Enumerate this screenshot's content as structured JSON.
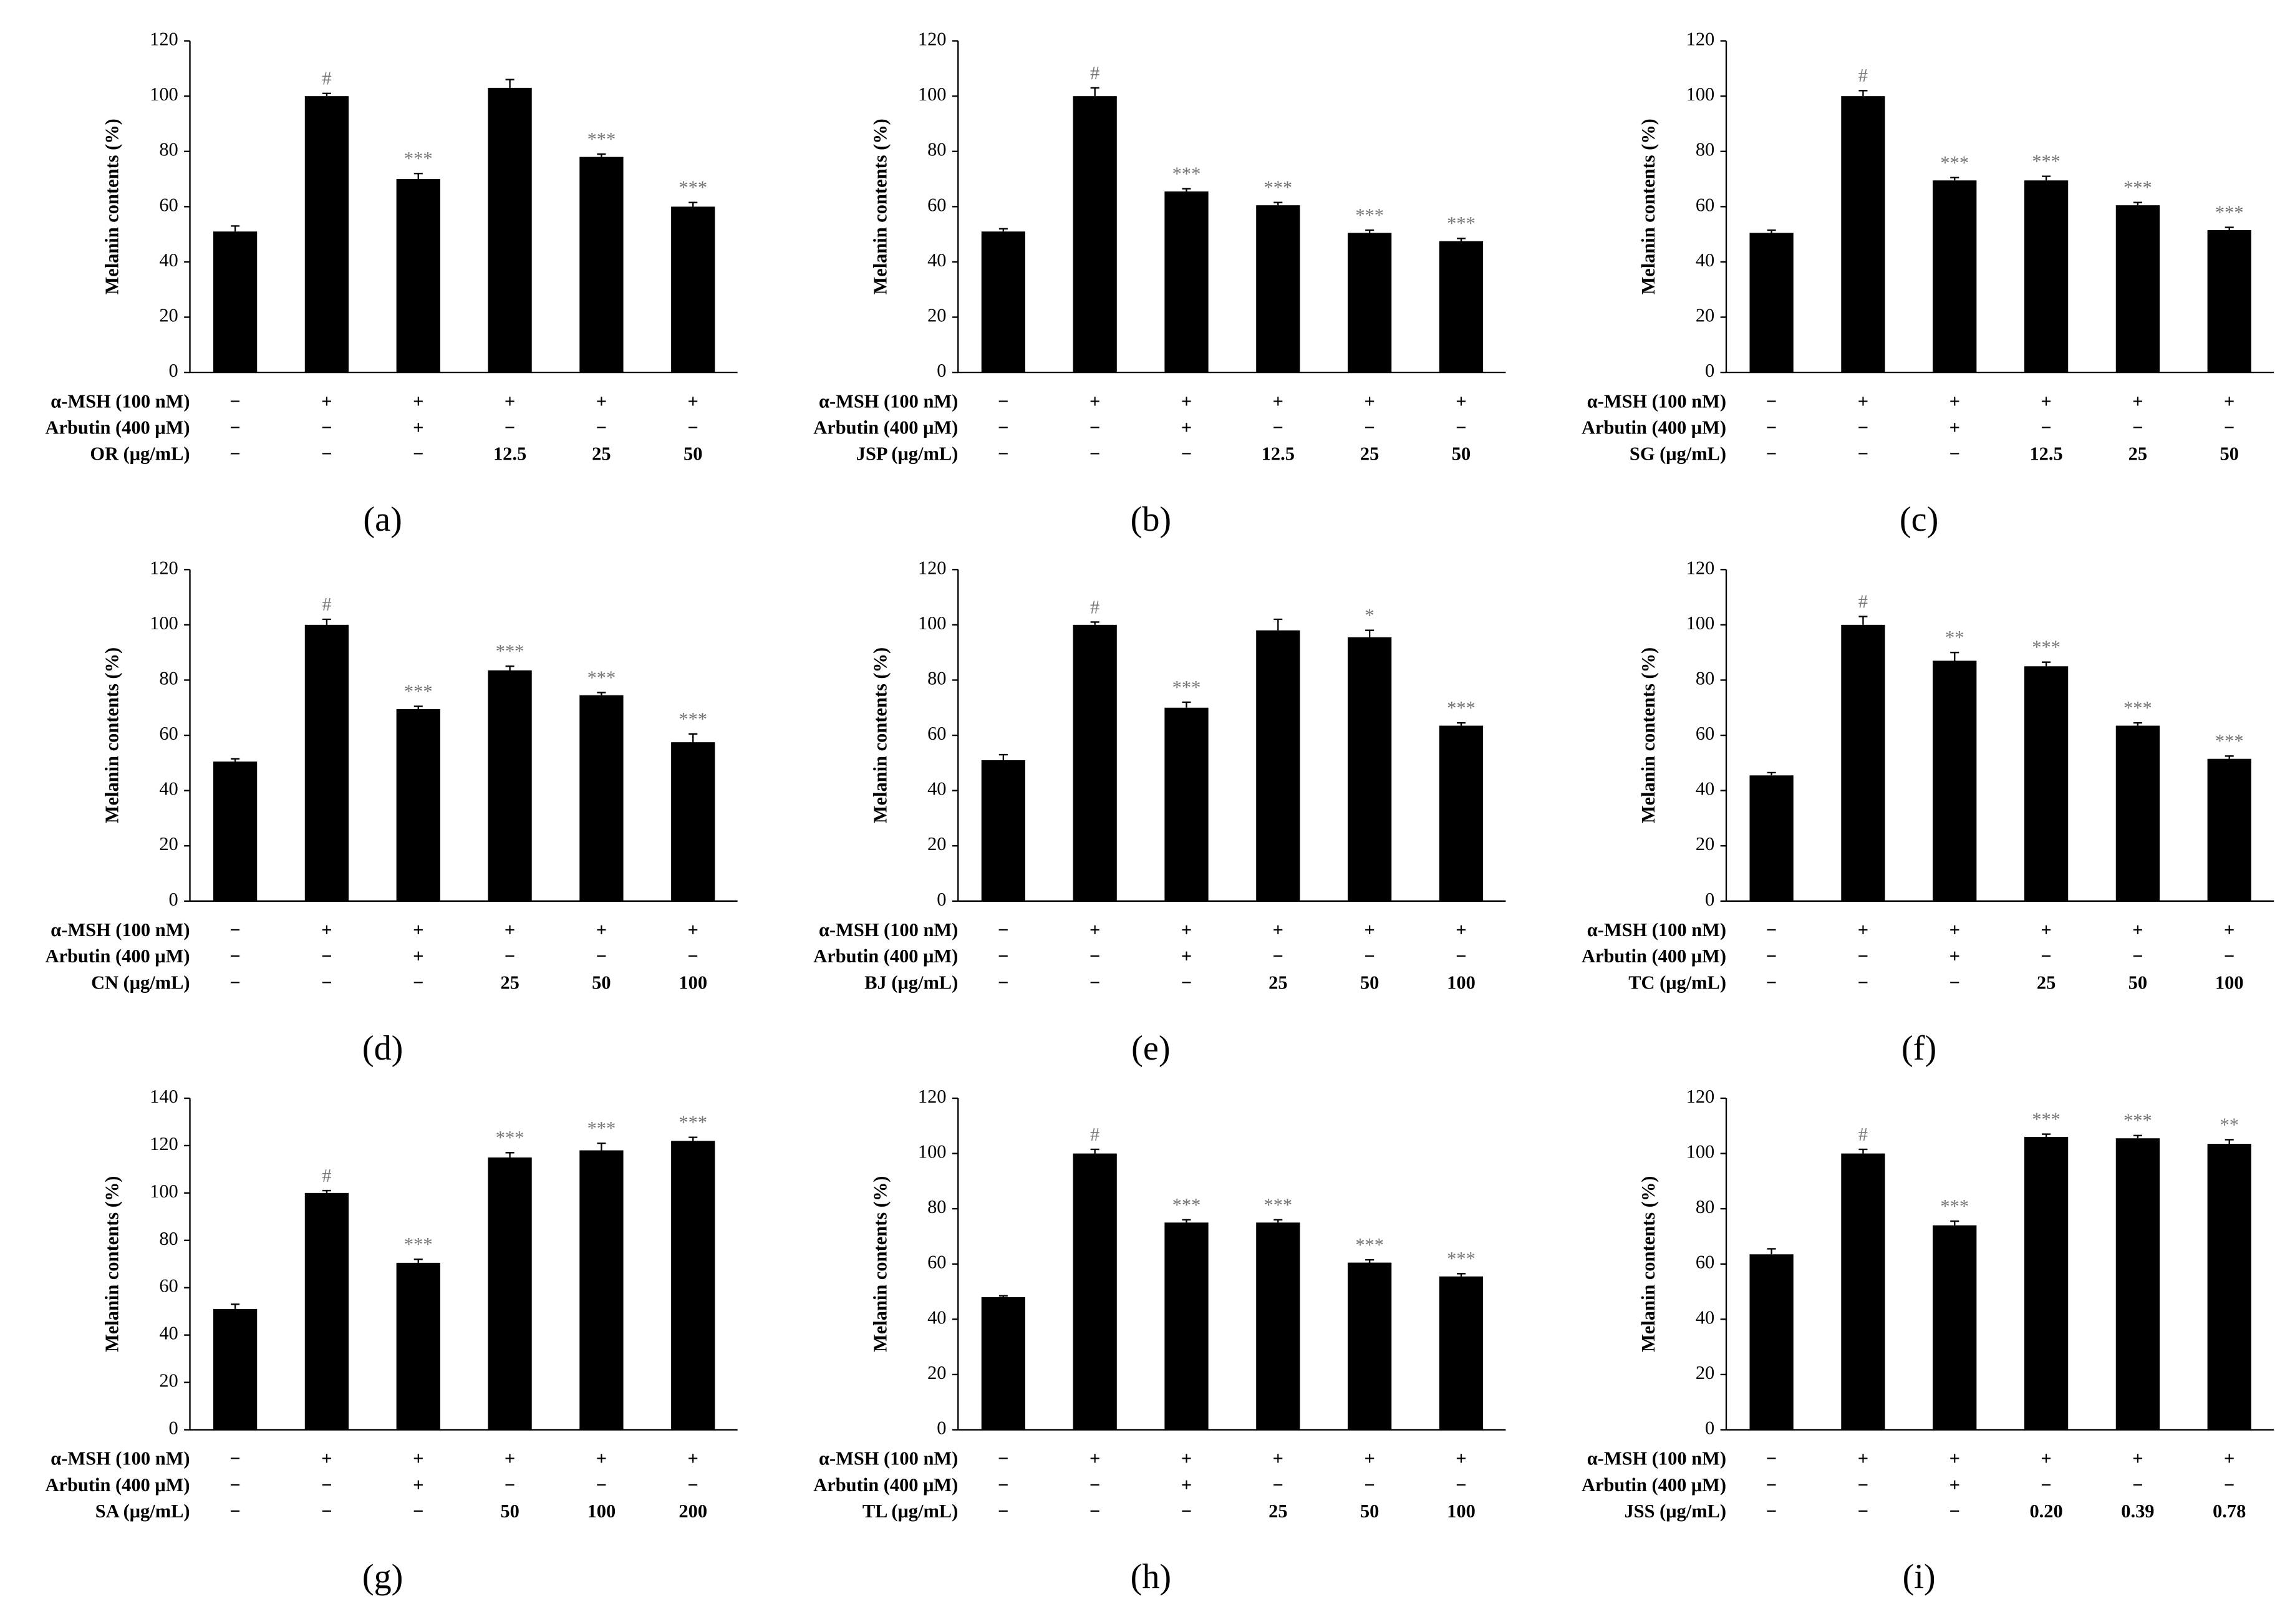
{
  "chart_data": [
    {
      "type": "bar",
      "panel": "(a)",
      "ylabel": "Melanin contents (%)",
      "color": "#000000",
      "ylim": [
        0,
        120
      ],
      "yticks": [
        0,
        20,
        40,
        60,
        80,
        100,
        120
      ],
      "values": [
        51,
        100,
        70,
        103,
        78,
        60
      ],
      "errors": [
        2,
        1,
        2,
        3,
        1,
        1.5
      ],
      "annotations": [
        null,
        "#",
        "***",
        null,
        "***",
        "***"
      ],
      "conditions": [
        {
          "label": "α-MSH (100 nM)",
          "cells": [
            "−",
            "+",
            "+",
            "+",
            "+",
            "+"
          ]
        },
        {
          "label": "Arbutin (400 μM)",
          "cells": [
            "−",
            "−",
            "+",
            "−",
            "−",
            "−"
          ]
        },
        {
          "label": "OR (μg/mL)",
          "cells": [
            "−",
            "−",
            "−",
            "12.5",
            "25",
            "50"
          ]
        }
      ]
    },
    {
      "type": "bar",
      "panel": "(b)",
      "ylabel": "Melanin contents (%)",
      "color": "#000000",
      "ylim": [
        0,
        120
      ],
      "yticks": [
        0,
        20,
        40,
        60,
        80,
        100,
        120
      ],
      "values": [
        51,
        100,
        65.5,
        60.5,
        50.5,
        47.5
      ],
      "errors": [
        1,
        3,
        1,
        1,
        1,
        1
      ],
      "annotations": [
        null,
        "#",
        "***",
        "***",
        "***",
        "***"
      ],
      "conditions": [
        {
          "label": "α-MSH (100 nM)",
          "cells": [
            "−",
            "+",
            "+",
            "+",
            "+",
            "+"
          ]
        },
        {
          "label": "Arbutin (400 μM)",
          "cells": [
            "−",
            "−",
            "+",
            "−",
            "−",
            "−"
          ]
        },
        {
          "label": "JSP (μg/mL)",
          "cells": [
            "−",
            "−",
            "−",
            "12.5",
            "25",
            "50"
          ]
        }
      ]
    },
    {
      "type": "bar",
      "panel": "(c)",
      "ylabel": "Melanin contents (%)",
      "color": "#000000",
      "ylim": [
        0,
        120
      ],
      "yticks": [
        0,
        20,
        40,
        60,
        80,
        100,
        120
      ],
      "values": [
        50.5,
        100,
        69.5,
        69.5,
        60.5,
        51.5
      ],
      "errors": [
        1,
        2,
        1,
        1.5,
        1,
        1
      ],
      "annotations": [
        null,
        "#",
        "***",
        "***",
        "***",
        "***"
      ],
      "conditions": [
        {
          "label": "α-MSH (100 nM)",
          "cells": [
            "−",
            "+",
            "+",
            "+",
            "+",
            "+"
          ]
        },
        {
          "label": "Arbutin (400 μM)",
          "cells": [
            "−",
            "−",
            "+",
            "−",
            "−",
            "−"
          ]
        },
        {
          "label": "SG (μg/mL)",
          "cells": [
            "−",
            "−",
            "−",
            "12.5",
            "25",
            "50"
          ]
        }
      ]
    },
    {
      "type": "bar",
      "panel": "(d)",
      "ylabel": "Melanin contents (%)",
      "color": "#000000",
      "ylim": [
        0,
        120
      ],
      "yticks": [
        0,
        20,
        40,
        60,
        80,
        100,
        120
      ],
      "values": [
        50.5,
        100,
        69.5,
        83.5,
        74.5,
        57.5
      ],
      "errors": [
        1,
        2,
        1,
        1.5,
        1,
        3
      ],
      "annotations": [
        null,
        "#",
        "***",
        "***",
        "***",
        "***"
      ],
      "conditions": [
        {
          "label": "α-MSH (100 nM)",
          "cells": [
            "−",
            "+",
            "+",
            "+",
            "+",
            "+"
          ]
        },
        {
          "label": "Arbutin (400 μM)",
          "cells": [
            "−",
            "−",
            "+",
            "−",
            "−",
            "−"
          ]
        },
        {
          "label": "CN (μg/mL)",
          "cells": [
            "−",
            "−",
            "−",
            "25",
            "50",
            "100"
          ]
        }
      ]
    },
    {
      "type": "bar",
      "panel": "(e)",
      "ylabel": "Melanin contents (%)",
      "color": "#000000",
      "ylim": [
        0,
        120
      ],
      "yticks": [
        0,
        20,
        40,
        60,
        80,
        100,
        120
      ],
      "values": [
        51,
        100,
        70,
        98,
        95.5,
        63.5
      ],
      "errors": [
        2,
        1,
        2,
        4,
        2.5,
        1
      ],
      "annotations": [
        null,
        "#",
        "***",
        null,
        "*",
        "***"
      ],
      "conditions": [
        {
          "label": "α-MSH (100 nM)",
          "cells": [
            "−",
            "+",
            "+",
            "+",
            "+",
            "+"
          ]
        },
        {
          "label": "Arbutin (400 μM)",
          "cells": [
            "−",
            "−",
            "+",
            "−",
            "−",
            "−"
          ]
        },
        {
          "label": "BJ (μg/mL)",
          "cells": [
            "−",
            "−",
            "−",
            "25",
            "50",
            "100"
          ]
        }
      ]
    },
    {
      "type": "bar",
      "panel": "(f)",
      "ylabel": "Melanin contents (%)",
      "color": "#000000",
      "ylim": [
        0,
        120
      ],
      "yticks": [
        0,
        20,
        40,
        60,
        80,
        100,
        120
      ],
      "values": [
        45.5,
        100,
        87,
        85,
        63.5,
        51.5
      ],
      "errors": [
        1,
        3,
        3,
        1.5,
        1,
        1
      ],
      "annotations": [
        null,
        "#",
        "**",
        "***",
        "***",
        "***"
      ],
      "conditions": [
        {
          "label": "α-MSH (100 nM)",
          "cells": [
            "−",
            "+",
            "+",
            "+",
            "+",
            "+"
          ]
        },
        {
          "label": "Arbutin (400 μM)",
          "cells": [
            "−",
            "−",
            "+",
            "−",
            "−",
            "−"
          ]
        },
        {
          "label": "TC (μg/mL)",
          "cells": [
            "−",
            "−",
            "−",
            "25",
            "50",
            "100"
          ]
        }
      ]
    },
    {
      "type": "bar",
      "panel": "(g)",
      "ylabel": "Melanin contents (%)",
      "color": "#000000",
      "ylim": [
        0,
        140
      ],
      "yticks": [
        0,
        20,
        40,
        60,
        80,
        100,
        120,
        140
      ],
      "values": [
        51,
        100,
        70.5,
        115,
        118,
        122
      ],
      "errors": [
        2,
        1,
        1.5,
        2,
        3,
        1.5
      ],
      "annotations": [
        null,
        "#",
        "***",
        "***",
        "***",
        "***"
      ],
      "conditions": [
        {
          "label": "α-MSH (100 nM)",
          "cells": [
            "−",
            "+",
            "+",
            "+",
            "+",
            "+"
          ]
        },
        {
          "label": "Arbutin (400 μM)",
          "cells": [
            "−",
            "−",
            "+",
            "−",
            "−",
            "−"
          ]
        },
        {
          "label": "SA (μg/mL)",
          "cells": [
            "−",
            "−",
            "−",
            "50",
            "100",
            "200"
          ]
        }
      ]
    },
    {
      "type": "bar",
      "panel": "(h)",
      "ylabel": "Melanin contents (%)",
      "color": "#000000",
      "ylim": [
        0,
        120
      ],
      "yticks": [
        0,
        20,
        40,
        60,
        80,
        100,
        120
      ],
      "values": [
        48,
        100,
        75,
        75,
        60.5,
        55.5
      ],
      "errors": [
        0.5,
        1.5,
        1,
        1,
        1,
        1
      ],
      "annotations": [
        null,
        "#",
        "***",
        "***",
        "***",
        "***"
      ],
      "conditions": [
        {
          "label": "α-MSH (100 nM)",
          "cells": [
            "−",
            "+",
            "+",
            "+",
            "+",
            "+"
          ]
        },
        {
          "label": "Arbutin (400 μM)",
          "cells": [
            "−",
            "−",
            "+",
            "−",
            "−",
            "−"
          ]
        },
        {
          "label": "TL (μg/mL)",
          "cells": [
            "−",
            "−",
            "−",
            "25",
            "50",
            "100"
          ]
        }
      ]
    },
    {
      "type": "bar",
      "panel": "(i)",
      "ylabel": "Melanin contents (%)",
      "color": "#000000",
      "ylim": [
        0,
        120
      ],
      "yticks": [
        0,
        20,
        40,
        60,
        80,
        100,
        120
      ],
      "values": [
        63.5,
        100,
        74,
        106,
        105.5,
        103.5
      ],
      "errors": [
        2,
        1.5,
        1.5,
        1,
        1,
        1.5
      ],
      "annotations": [
        null,
        "#",
        "***",
        "***",
        "***",
        "**"
      ],
      "conditions": [
        {
          "label": "α-MSH (100 nM)",
          "cells": [
            "−",
            "+",
            "+",
            "+",
            "+",
            "+"
          ]
        },
        {
          "label": "Arbutin (400 μM)",
          "cells": [
            "−",
            "−",
            "+",
            "−",
            "−",
            "−"
          ]
        },
        {
          "label": "JSS (μg/mL)",
          "cells": [
            "−",
            "−",
            "−",
            "0.20",
            "0.39",
            "0.78"
          ]
        }
      ]
    }
  ]
}
